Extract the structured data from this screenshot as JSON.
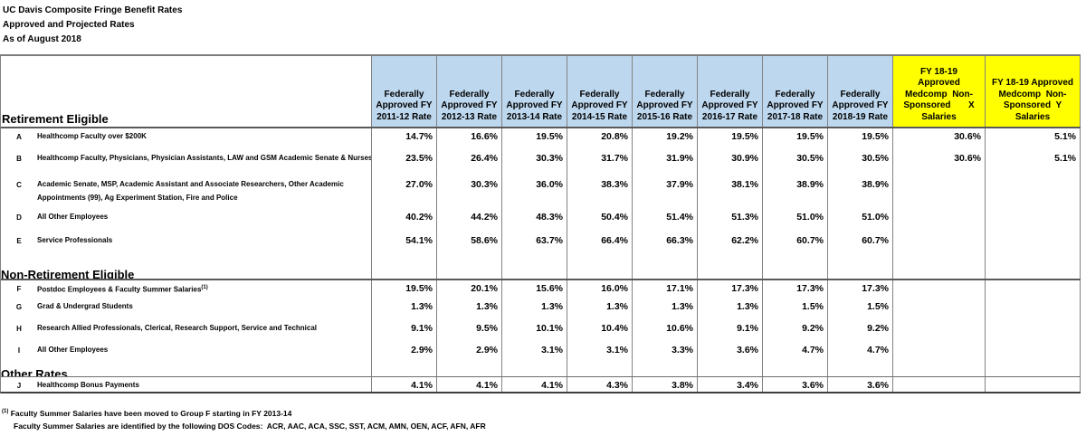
{
  "titles": {
    "line1": "UC Davis Composite Fringe Benefit Rates",
    "line2": "Approved and Projected Rates",
    "line3": "As of August 2018"
  },
  "table": {
    "rate_headers": [
      "Federally\nApproved FY\n2011-12 Rate",
      "Federally\nApproved FY\n2012-13 Rate",
      "Federally\nApproved FY\n2013-14 Rate",
      "Federally\nApproved FY\n2014-15 Rate",
      "Federally\nApproved FY\n2015-16 Rate",
      "Federally\nApproved FY\n2016-17 Rate",
      "Federally\nApproved FY\n2017-18 Rate",
      "Federally\nApproved FY\n2018-19 Rate"
    ],
    "medcomp_headers": [
      "FY 18-19\nApproved\nMedcomp  Non-\nSponsored       X\nSalaries",
      "FY 18-19 Approved\nMedcomp  Non-\nSponsored  Y\nSalaries"
    ],
    "sections": [
      {
        "name": "Retirement Eligible",
        "rows": [
          {
            "letter": "A",
            "label": "Healthcomp Faculty over $200K",
            "rates": [
              "14.7%",
              "16.6%",
              "19.5%",
              "20.8%",
              "19.2%",
              "19.5%",
              "19.5%",
              "19.5%"
            ],
            "medcomp_x": "30.6%",
            "medcomp_y": "5.1%"
          },
          {
            "letter": "B",
            "label": "Healthcomp Faculty, Physicians, Physician Assistants, LAW and GSM Academic Senate & Nurses",
            "rates": [
              "23.5%",
              "26.4%",
              "30.3%",
              "31.7%",
              "31.9%",
              "30.9%",
              "30.5%",
              "30.5%"
            ],
            "medcomp_x": "30.6%",
            "medcomp_y": "5.1%"
          },
          {
            "letter": "C",
            "label": "Academic Senate, MSP, Academic Assistant and Associate Researchers, Other Academic\nAppointments (99), Ag Experiment Station, Fire and Police",
            "rates": [
              "27.0%",
              "30.3%",
              "36.0%",
              "38.3%",
              "37.9%",
              "38.1%",
              "38.9%",
              "38.9%"
            ],
            "medcomp_x": "",
            "medcomp_y": ""
          },
          {
            "letter": "D",
            "label": "All Other Employees",
            "rates": [
              "40.2%",
              "44.2%",
              "48.3%",
              "50.4%",
              "51.4%",
              "51.3%",
              "51.0%",
              "51.0%"
            ],
            "medcomp_x": "",
            "medcomp_y": ""
          },
          {
            "letter": "E",
            "label": "Service Professionals",
            "rates": [
              "54.1%",
              "58.6%",
              "63.7%",
              "66.4%",
              "66.3%",
              "62.2%",
              "60.7%",
              "60.7%"
            ],
            "medcomp_x": "",
            "medcomp_y": ""
          }
        ]
      },
      {
        "name": "Non-Retirement Eligible",
        "rows": [
          {
            "letter": "F",
            "label": "Postdoc Employees & Faculty Summer Salaries",
            "sup": "(1)",
            "rates": [
              "19.5%",
              "20.1%",
              "15.6%",
              "16.0%",
              "17.1%",
              "17.3%",
              "17.3%",
              "17.3%"
            ],
            "medcomp_x": "",
            "medcomp_y": ""
          },
          {
            "letter": "G",
            "label": "Grad & Undergrad Students",
            "rates": [
              "1.3%",
              "1.3%",
              "1.3%",
              "1.3%",
              "1.3%",
              "1.3%",
              "1.5%",
              "1.5%"
            ],
            "medcomp_x": "",
            "medcomp_y": ""
          },
          {
            "letter": "H",
            "label": "Research Allied Professionals, Clerical, Research Support, Service and Technical",
            "rates": [
              "9.1%",
              "9.5%",
              "10.1%",
              "10.4%",
              "10.6%",
              "9.1%",
              "9.2%",
              "9.2%"
            ],
            "medcomp_x": "",
            "medcomp_y": ""
          },
          {
            "letter": "I",
            "label": "All Other Employees",
            "rates": [
              "2.9%",
              "2.9%",
              "3.1%",
              "3.1%",
              "3.3%",
              "3.6%",
              "4.7%",
              "4.7%"
            ],
            "medcomp_x": "",
            "medcomp_y": ""
          }
        ]
      },
      {
        "name": "Other Rates",
        "rows": [
          {
            "letter": "J",
            "label": "Healthcomp Bonus Payments",
            "rates": [
              "4.1%",
              "4.1%",
              "4.1%",
              "4.3%",
              "3.8%",
              "3.4%",
              "3.6%",
              "3.6%"
            ],
            "medcomp_x": "",
            "medcomp_y": ""
          }
        ]
      }
    ]
  },
  "footnotes": {
    "sup": "(1)",
    "line1": "Faculty Summer Salaries have been moved to Group F starting in FY 2013-14",
    "line2": "Faculty Summer Salaries are identified by the following DOS Codes:  ACR, AAC, ACA, SSC, SST, ACM, AMN, OEN, ACF, AFN, AFR"
  },
  "colors": {
    "header_blue": "#BDD7EE",
    "header_yellow": "#FFFF00",
    "grid_border": "#828282",
    "section_border": "#595959",
    "text": "#000000"
  }
}
